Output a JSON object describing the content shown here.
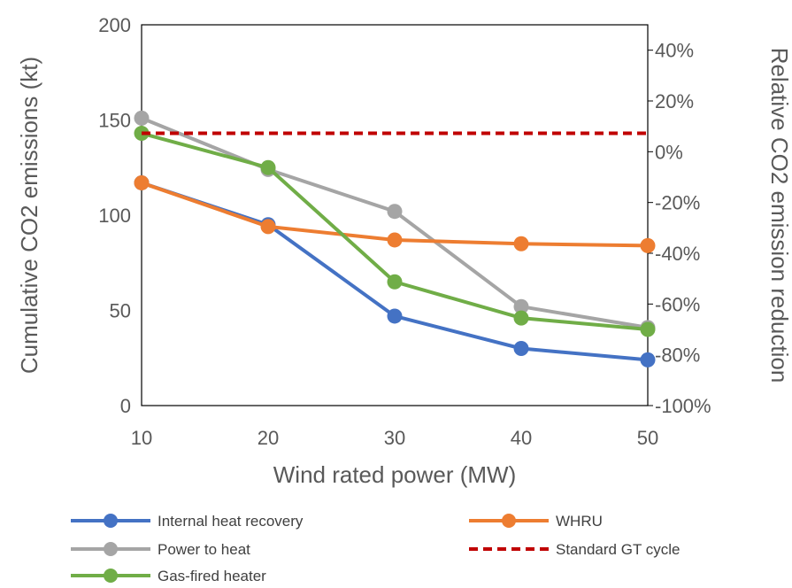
{
  "chart_data": {
    "type": "line",
    "xlabel": "Wind rated power (MW)",
    "ylabel": "Cumulative CO2  emissions (kt)",
    "y2label": "Relative CO2 emission reduction",
    "x": [
      10,
      20,
      30,
      40,
      50
    ],
    "xlim": [
      10,
      50
    ],
    "ylim": [
      0,
      200
    ],
    "y2lim": [
      -100,
      50
    ],
    "x_ticks": [
      "10",
      "20",
      "30",
      "40",
      "50"
    ],
    "y_ticks": [
      "0",
      "50",
      "100",
      "150",
      "200"
    ],
    "y2_ticks": [
      "-100%",
      "-80%",
      "-60%",
      "-40%",
      "-20%",
      "0%",
      "20%",
      "40%"
    ],
    "series": [
      {
        "name": "Internal heat recovery",
        "color": "#4472C4",
        "style": "solid-marker",
        "values": [
          117,
          95,
          47,
          30,
          24
        ]
      },
      {
        "name": "WHRU",
        "color": "#ED7D31",
        "style": "solid-marker",
        "values": [
          117,
          94,
          87,
          85,
          84
        ]
      },
      {
        "name": "Power to heat",
        "color": "#A5A5A5",
        "style": "solid-marker",
        "values": [
          151,
          124,
          102,
          52,
          41
        ]
      },
      {
        "name": "Standard GT cycle",
        "color": "#C00000",
        "style": "dashed",
        "values": [
          143,
          143,
          143,
          143,
          143
        ]
      },
      {
        "name": "Gas-fired heater",
        "color": "#70AD47",
        "style": "solid-marker",
        "values": [
          143,
          125,
          65,
          46,
          40
        ]
      }
    ],
    "draw_order": [
      "Power to heat",
      "Internal heat recovery",
      "WHRU",
      "Gas-fired heater",
      "Standard GT cycle"
    ],
    "grid": false,
    "legend_position": "bottom"
  }
}
